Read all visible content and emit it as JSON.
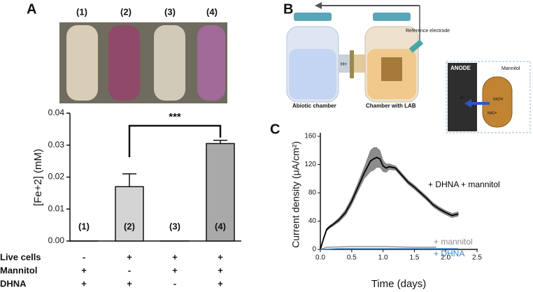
{
  "panel_labels": [
    "A",
    "B",
    "C"
  ],
  "photo": {
    "labels": [
      "(1)",
      "(2)",
      "(3)",
      "(4)"
    ]
  },
  "diagram": {
    "reference_electrode": "Reference electrode",
    "abiotic_chamber": "Abiotic chamber",
    "chamber_with_lab": "Chamber with LAB",
    "anode": "ANODE",
    "mannitol": "Mannitol",
    "nadh": "NADH",
    "nad": "NAD+",
    "electron": "e-",
    "proton": "H+"
  },
  "chart_data": [
    {
      "type": "bar",
      "y_label": "[Fe+2] (mM)",
      "categories": [
        "(1)",
        "(2)",
        "(3)",
        "(4)"
      ],
      "values": [
        0,
        0.017,
        0,
        0.0305
      ],
      "errors": [
        0,
        0.004,
        0,
        0.001
      ],
      "colors": [
        "#ffffff",
        "#d4d4d4",
        "#ffffff",
        "#a9a9a9"
      ],
      "ylim": [
        0,
        0.04
      ],
      "yticks": [
        {
          "value": 0,
          "label": "0.00"
        },
        {
          "value": 0.01,
          "label": "0.01"
        },
        {
          "value": 0.02,
          "label": "0.02"
        },
        {
          "value": 0.03,
          "label": "0.03"
        },
        {
          "value": 0.04,
          "label": "0.04"
        }
      ],
      "annotation": "***",
      "conditions": [
        {
          "name": "Live cells",
          "marks": [
            "-",
            "+",
            "+",
            "+"
          ]
        },
        {
          "name": "Mannitol",
          "marks": [
            "+",
            "-",
            "+",
            "+"
          ]
        },
        {
          "name": "DHNA",
          "marks": [
            "+",
            "+",
            "-",
            "+"
          ]
        }
      ]
    },
    {
      "type": "line",
      "x_label": "Time (days)",
      "y_label": "Current density (μA/cm²)",
      "xlim": [
        0,
        2.5
      ],
      "ylim": [
        0,
        165
      ],
      "xticks": [
        {
          "value": 0,
          "label": "0.0"
        },
        0.5,
        {
          "value": 1,
          "label": "1.0"
        },
        1.5,
        {
          "value": 2,
          "label": "2.0"
        },
        2.5
      ],
      "yticks": [
        0,
        40,
        80,
        120,
        160
      ],
      "series": [
        {
          "name": "+ DHNA + mannitol",
          "color": "#000000",
          "band_color": "#8c8c8c",
          "x": [
            0,
            0.05,
            0.1,
            0.15,
            0.2,
            0.3,
            0.4,
            0.5,
            0.6,
            0.7,
            0.8,
            0.85,
            0.9,
            0.95,
            1.0,
            1.05,
            1.1,
            1.2,
            1.3,
            1.4,
            1.5,
            1.6,
            1.7,
            1.8,
            1.9,
            2.0,
            2.1,
            2.2
          ],
          "values": [
            0,
            15,
            28,
            32,
            35,
            42,
            52,
            68,
            88,
            108,
            125,
            128,
            130,
            128,
            118,
            115,
            117,
            115,
            105,
            95,
            88,
            80,
            72,
            63,
            57,
            52,
            48,
            50
          ],
          "error": [
            0,
            2,
            2,
            2,
            2,
            3,
            4,
            5,
            6,
            8,
            15,
            16,
            14,
            12,
            8,
            6,
            4,
            3,
            3,
            3,
            3,
            3,
            3,
            3,
            3,
            3,
            3,
            3
          ]
        },
        {
          "name": "+ mannitol",
          "color": "#8c8c8c",
          "x": [
            0,
            0.1,
            0.5,
            1,
            1.5,
            1.85
          ],
          "values": [
            0,
            3,
            4,
            4,
            3,
            3
          ]
        },
        {
          "name": "+ DHNA",
          "color": "#3b86c9",
          "x": [
            0,
            0.3,
            1,
            1.5,
            2.2
          ],
          "values": [
            0,
            1,
            1,
            1,
            1
          ]
        }
      ]
    }
  ]
}
